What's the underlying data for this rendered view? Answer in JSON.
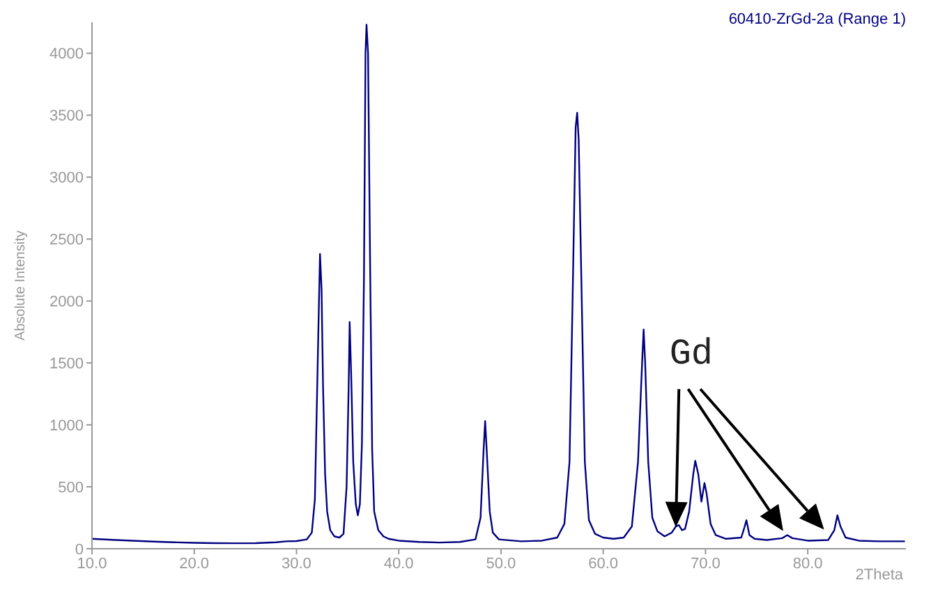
{
  "chart_data": {
    "type": "line",
    "ylabel": "Absolute Intensity",
    "xlabel": "2Theta",
    "annotations": [
      "Gd"
    ],
    "legend": "top right",
    "marker": "none",
    "grid": false,
    "xlim": [
      10,
      89.6
    ],
    "xticks": [
      {
        "value": 10,
        "label": "10.0"
      },
      {
        "value": 20,
        "label": "20.0"
      },
      {
        "value": 30,
        "label": "30.0"
      },
      {
        "value": 40,
        "label": "40.0"
      },
      {
        "value": 50,
        "label": "50.0"
      },
      {
        "value": 60,
        "label": "60.0"
      },
      {
        "value": 70,
        "label": "70.0"
      },
      {
        "value": 80,
        "label": "80.0"
      }
    ],
    "ylim": [
      0,
      4250
    ],
    "yticks": [
      0,
      500,
      1000,
      1500,
      2000,
      2500,
      3000,
      3500,
      4000
    ],
    "series": [
      {
        "name": "60410-ZrGd-2a (Range 1)",
        "color": "#000080",
        "x": [
          10,
          12,
          14,
          16,
          18,
          20,
          22,
          24,
          26,
          28,
          29,
          30,
          31,
          31.5,
          31.8,
          32,
          32.2,
          32.3,
          32.45,
          32.6,
          32.8,
          33,
          33.3,
          33.7,
          34.2,
          34.6,
          34.9,
          35.1,
          35.2,
          35.35,
          35.55,
          35.8,
          36,
          36.2,
          36.4,
          36.6,
          36.75,
          36.85,
          37,
          37.2,
          37.4,
          37.6,
          38,
          38.5,
          39,
          40,
          42,
          44,
          46,
          47.5,
          48,
          48.3,
          48.45,
          48.6,
          48.9,
          49.2,
          49.8,
          52,
          54,
          55.5,
          56.2,
          56.7,
          57,
          57.3,
          57.45,
          57.6,
          57.9,
          58.2,
          58.6,
          59.2,
          60,
          61,
          62,
          62.8,
          63.4,
          63.8,
          63.95,
          64.1,
          64.4,
          64.8,
          65.3,
          66,
          66.7,
          67.1,
          67.4,
          67.7,
          68,
          68.4,
          68.8,
          69,
          69.3,
          69.6,
          69.9,
          70.1,
          70.5,
          71,
          72,
          73.5,
          73.8,
          74,
          74.3,
          74.8,
          76,
          77.5,
          78,
          78.5,
          80,
          82,
          82.6,
          82.9,
          83.2,
          83.7,
          85,
          87,
          89.5
        ],
        "values": [
          80,
          72,
          65,
          58,
          52,
          48,
          45,
          44,
          45,
          52,
          60,
          62,
          75,
          130,
          400,
          1200,
          2000,
          2380,
          2100,
          1300,
          600,
          300,
          150,
          100,
          90,
          120,
          500,
          1300,
          1830,
          1400,
          700,
          360,
          270,
          360,
          850,
          2200,
          4000,
          4230,
          4000,
          2300,
          800,
          300,
          150,
          100,
          80,
          65,
          55,
          50,
          55,
          75,
          250,
          800,
          1030,
          800,
          300,
          130,
          75,
          60,
          65,
          90,
          200,
          700,
          2000,
          3400,
          3520,
          3300,
          2000,
          700,
          230,
          120,
          90,
          80,
          90,
          180,
          700,
          1500,
          1770,
          1500,
          700,
          250,
          140,
          100,
          130,
          180,
          190,
          150,
          160,
          300,
          600,
          710,
          600,
          380,
          530,
          450,
          200,
          110,
          80,
          90,
          170,
          230,
          110,
          80,
          70,
          85,
          110,
          85,
          65,
          70,
          150,
          270,
          180,
          90,
          65,
          60,
          60
        ]
      }
    ]
  }
}
